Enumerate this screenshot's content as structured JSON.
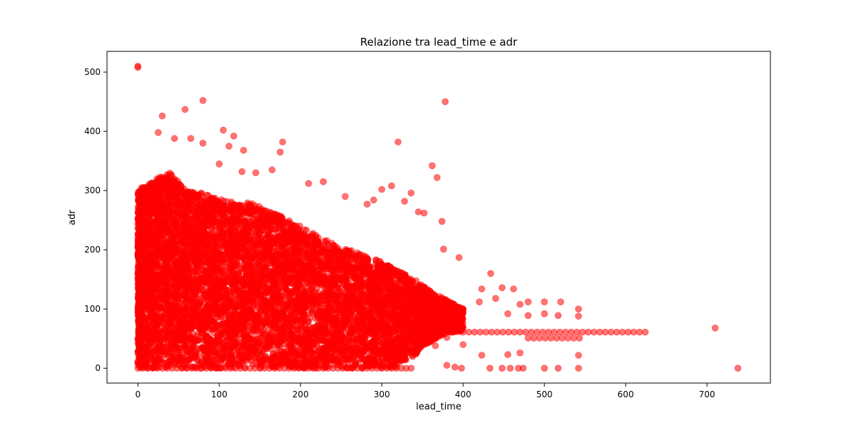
{
  "chart_data": {
    "type": "scatter",
    "title": "Relazione tra lead_time e adr",
    "xlabel": "lead_time",
    "ylabel": "adr",
    "xlim": [
      -38,
      778
    ],
    "ylim": [
      -25,
      535
    ],
    "xticks": [
      0,
      100,
      200,
      300,
      400,
      500,
      600,
      700
    ],
    "yticks": [
      0,
      100,
      200,
      300,
      400,
      500
    ],
    "grid": false,
    "legend": "none",
    "marker_color": "#ff0000",
    "marker_alpha": 0.55,
    "series": [
      {
        "points": [
          [
            0,
            510
          ],
          [
            0,
            508
          ],
          [
            80,
            452
          ],
          [
            378,
            450
          ],
          [
            30,
            426
          ],
          [
            58,
            437
          ],
          [
            105,
            402
          ],
          [
            80,
            380
          ],
          [
            118,
            392
          ],
          [
            178,
            382
          ],
          [
            320,
            382
          ],
          [
            25,
            398
          ],
          [
            45,
            388
          ],
          [
            65,
            388
          ],
          [
            112,
            375
          ],
          [
            130,
            368
          ],
          [
            175,
            365
          ],
          [
            100,
            345
          ],
          [
            128,
            332
          ],
          [
            145,
            330
          ],
          [
            165,
            335
          ],
          [
            210,
            312
          ],
          [
            228,
            315
          ],
          [
            300,
            302
          ],
          [
            312,
            308
          ],
          [
            336,
            296
          ],
          [
            328,
            282
          ],
          [
            362,
            342
          ],
          [
            368,
            322
          ],
          [
            345,
            264
          ],
          [
            352,
            262
          ],
          [
            374,
            248
          ],
          [
            290,
            284
          ],
          [
            282,
            277
          ],
          [
            255,
            290
          ],
          [
            395,
            187
          ],
          [
            376,
            201
          ],
          [
            434,
            160
          ],
          [
            448,
            136
          ],
          [
            462,
            134
          ],
          [
            423,
            134
          ],
          [
            400,
            100
          ],
          [
            420,
            112
          ],
          [
            440,
            118
          ],
          [
            470,
            108
          ],
          [
            480,
            112
          ],
          [
            500,
            112
          ],
          [
            520,
            112
          ],
          [
            455,
            92
          ],
          [
            480,
            89
          ],
          [
            500,
            92
          ],
          [
            517,
            89
          ],
          [
            542,
            100
          ],
          [
            542,
            88
          ],
          [
            350,
            55
          ],
          [
            360,
            45
          ],
          [
            366,
            38
          ],
          [
            380,
            52
          ],
          [
            400,
            40
          ],
          [
            423,
            22
          ],
          [
            455,
            23
          ],
          [
            470,
            26
          ],
          [
            380,
            5
          ],
          [
            390,
            2
          ],
          [
            398,
            0
          ],
          [
            433,
            0
          ],
          [
            448,
            0
          ],
          [
            458,
            0
          ],
          [
            468,
            0
          ],
          [
            474,
            0
          ],
          [
            500,
            0
          ],
          [
            517,
            0
          ],
          [
            542,
            0
          ],
          [
            542,
            22
          ],
          [
            710,
            68
          ],
          [
            738,
            0
          ]
        ]
      }
    ],
    "horizontal_runs": [
      {
        "x_start": 400,
        "x_end": 630,
        "y": 61,
        "step": 7
      },
      {
        "x_start": 480,
        "x_end": 545,
        "y": 51,
        "step": 7
      },
      {
        "x_start": 0,
        "x_end": 340,
        "y": 0,
        "step": 6
      }
    ],
    "dense_region": {
      "envelope": [
        [
          0,
          0,
          300
        ],
        [
          20,
          0,
          320
        ],
        [
          40,
          0,
          330
        ],
        [
          60,
          0,
          300
        ],
        [
          80,
          0,
          295
        ],
        [
          100,
          0,
          285
        ],
        [
          120,
          0,
          280
        ],
        [
          140,
          0,
          280
        ],
        [
          160,
          0,
          265
        ],
        [
          180,
          0,
          255
        ],
        [
          200,
          0,
          240
        ],
        [
          220,
          0,
          225
        ],
        [
          240,
          0,
          210
        ],
        [
          260,
          0,
          200
        ],
        [
          280,
          0,
          190
        ],
        [
          300,
          0,
          180
        ],
        [
          320,
          3,
          165
        ],
        [
          340,
          20,
          150
        ],
        [
          360,
          45,
          130
        ],
        [
          380,
          60,
          115
        ],
        [
          400,
          62,
          100
        ]
      ],
      "count": 9000
    }
  }
}
